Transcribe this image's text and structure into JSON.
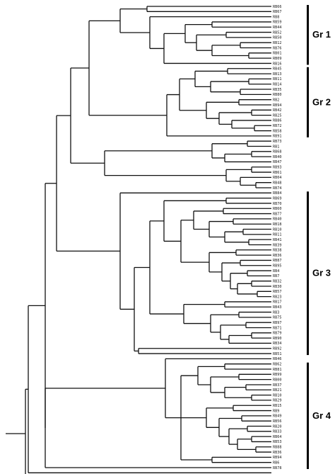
{
  "figure": {
    "groups": [
      {
        "label": "Gr 1"
      },
      {
        "label": "Gr 2"
      },
      {
        "label": "Gr 3"
      },
      {
        "label": "Gr 4"
      }
    ],
    "leaves": [
      "RB66",
      "RB67",
      "RB8",
      "RB59",
      "RB44",
      "RB52",
      "RB50",
      "RB12",
      "RB76",
      "RB01",
      "RB09",
      "RB16",
      "RB45",
      "RB13",
      "RB11",
      "RB14",
      "RB35",
      "RB80",
      "RB2",
      "RB94",
      "RB42",
      "RB25",
      "RB86",
      "RB72",
      "RB58",
      "RB91",
      "RB73",
      "RB1",
      "RB68",
      "RB40",
      "RB47",
      "RB93",
      "RB61",
      "RB04",
      "RB48",
      "RB74",
      "RB84",
      "RB69",
      "RB70",
      "RB60",
      "RB77",
      "RB40",
      "RB18",
      "RB10",
      "RB11",
      "RB41",
      "RB39",
      "RB38",
      "RB36",
      "RB87",
      "RB95",
      "RB4",
      "RB7",
      "RB32",
      "RB30",
      "RB57",
      "RB23",
      "RB17",
      "RB43",
      "RB3",
      "RB75",
      "RB97",
      "RB71",
      "RB79",
      "RB90",
      "RB34",
      "RB92",
      "RB51",
      "RB46",
      "RB62",
      "RB81",
      "RB99",
      "RB00",
      "RB37",
      "RB21",
      "RB10",
      "RB29",
      "RB15",
      "RB9",
      "RB49",
      "RB56",
      "RB20",
      "RB33",
      "RB64",
      "RB53",
      "RB88",
      "RB36",
      "RB94",
      "RB6",
      "RB78"
    ]
  }
}
